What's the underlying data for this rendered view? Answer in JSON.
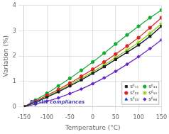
{
  "chart_data": {
    "type": "line",
    "xlabel": "Temperature (°C)",
    "ylabel": "Variation (%)",
    "annotation": "Elastic compliances",
    "x": [
      -150,
      -125,
      -100,
      -75,
      -50,
      -25,
      0,
      25,
      50,
      75,
      100,
      125,
      150
    ],
    "xlim": [
      -150,
      150
    ],
    "xticks": [
      -150,
      -100,
      -50,
      0,
      50,
      100,
      150
    ],
    "ylim": [
      0,
      4
    ],
    "yticks": [
      0,
      1,
      2,
      3,
      4
    ],
    "grid": true,
    "legend": "lower right",
    "series": [
      {
        "name": "sᴱ₁₁",
        "color": "#222222",
        "marker": "square",
        "values": [
          0.0,
          0.18,
          0.38,
          0.59,
          0.82,
          1.06,
          1.32,
          1.58,
          1.87,
          2.15,
          2.44,
          2.78,
          3.18
        ]
      },
      {
        "name": "sᴱ₂₂",
        "color": "#dd2222",
        "marker": "circle",
        "values": [
          0.0,
          0.22,
          0.45,
          0.68,
          0.93,
          1.2,
          1.48,
          1.77,
          2.08,
          2.4,
          2.73,
          3.12,
          3.52
        ]
      },
      {
        "name": "sᴱ₃₃",
        "color": "#2244cc",
        "marker": "triangle",
        "values": [
          0.0,
          0.18,
          0.38,
          0.59,
          0.82,
          1.06,
          1.32,
          1.58,
          1.87,
          2.15,
          2.44,
          2.78,
          3.18
        ]
      },
      {
        "name": "sᴱ₄₄",
        "color": "#11aa33",
        "marker": "circle",
        "values": [
          0.0,
          0.26,
          0.53,
          0.82,
          1.12,
          1.44,
          1.77,
          2.12,
          2.48,
          2.84,
          3.18,
          3.52,
          3.82
        ]
      },
      {
        "name": "sᴱ₅₅",
        "color": "#88cc00",
        "marker": "star",
        "values": [
          0.0,
          0.2,
          0.41,
          0.63,
          0.87,
          1.12,
          1.38,
          1.65,
          1.95,
          2.24,
          2.54,
          2.9,
          3.28
        ]
      },
      {
        "name": "sᴱ₆₆",
        "color": "#6622cc",
        "marker": "diamond",
        "values": [
          0.0,
          0.1,
          0.22,
          0.35,
          0.52,
          0.7,
          0.91,
          1.14,
          1.4,
          1.68,
          1.98,
          2.3,
          2.64
        ]
      }
    ]
  }
}
